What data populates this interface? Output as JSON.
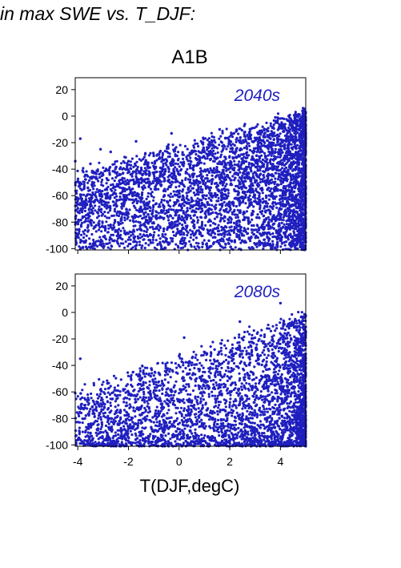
{
  "figure": {
    "header": "in max SWE vs. T_DJF:",
    "scenario": "A1B",
    "x_axis_title": "T(DJF,degC)",
    "point_color": "#1f1fbf"
  },
  "chart_data": [
    {
      "type": "scatter",
      "title": "2040s",
      "xlabel": "T(DJF,degC)",
      "ylabel": "",
      "xlim": [
        -4.1,
        5.0
      ],
      "ylim": [
        -101,
        29
      ],
      "x_ticks": [
        -4,
        -2,
        0,
        2,
        4
      ],
      "y_ticks": [
        20,
        0,
        -20,
        -40,
        -60,
        -80,
        -100
      ],
      "x_tick_labels_shown": false,
      "color": "#1f1fbf",
      "point_count_estimate": 4500,
      "points": [
        [
          -4.1,
          -34
        ],
        [
          -3.9,
          -17
        ],
        [
          -3.6,
          -54
        ],
        [
          -3.5,
          -36
        ],
        [
          -3.4,
          -51
        ],
        [
          -3.1,
          -25
        ],
        [
          -2.7,
          -27
        ],
        [
          -2.5,
          -39
        ],
        [
          -2.2,
          -56
        ],
        [
          -2.0,
          -34
        ],
        [
          -1.8,
          -48
        ],
        [
          -1.7,
          -19
        ],
        [
          -1.5,
          -63
        ],
        [
          -1.3,
          -44
        ],
        [
          -1.1,
          -77
        ],
        [
          -1.0,
          -30
        ],
        [
          -0.9,
          -66
        ],
        [
          -0.7,
          -52
        ],
        [
          -0.6,
          -85
        ],
        [
          -0.4,
          -40
        ],
        [
          -0.3,
          -13
        ],
        [
          -0.1,
          -71
        ],
        [
          0.1,
          -93
        ],
        [
          0.3,
          -58
        ],
        [
          0.5,
          -28
        ],
        [
          0.6,
          -82
        ],
        [
          0.8,
          -45
        ],
        [
          1.0,
          -67
        ],
        [
          1.1,
          -98
        ],
        [
          1.3,
          -22
        ],
        [
          1.5,
          -76
        ],
        [
          1.6,
          -10
        ],
        [
          1.8,
          -88
        ],
        [
          2.0,
          -37
        ],
        [
          2.2,
          -95
        ],
        [
          2.4,
          -64
        ],
        [
          2.6,
          -6
        ],
        [
          2.8,
          -80
        ],
        [
          3.0,
          -50
        ],
        [
          3.2,
          -97
        ],
        [
          3.4,
          -30
        ],
        [
          3.6,
          -72
        ],
        [
          3.8,
          -1
        ],
        [
          4.0,
          -90
        ],
        [
          4.2,
          -42
        ],
        [
          4.4,
          -98
        ],
        [
          4.6,
          -61
        ],
        [
          4.8,
          -15
        ],
        [
          4.9,
          -84
        ],
        [
          5.0,
          -55
        ]
      ]
    },
    {
      "type": "scatter",
      "title": "2080s",
      "xlabel": "T(DJF,degC)",
      "ylabel": "",
      "xlim": [
        -4.1,
        5.0
      ],
      "ylim": [
        -101,
        29
      ],
      "x_ticks": [
        -4,
        -2,
        0,
        2,
        4
      ],
      "y_ticks": [
        20,
        0,
        -20,
        -40,
        -60,
        -80,
        -100
      ],
      "x_tick_labels_shown": true,
      "color": "#1f1fbf",
      "point_count_estimate": 3500,
      "points": [
        [
          -4.1,
          -61
        ],
        [
          -3.9,
          -35
        ],
        [
          -3.6,
          -66
        ],
        [
          -3.4,
          -74
        ],
        [
          -3.0,
          -68
        ],
        [
          -2.7,
          -80
        ],
        [
          -2.5,
          -93
        ],
        [
          -2.2,
          -58
        ],
        [
          -2.0,
          -86
        ],
        [
          -1.8,
          -72
        ],
        [
          -1.6,
          -98
        ],
        [
          -1.4,
          -64
        ],
        [
          -1.2,
          -47
        ],
        [
          -1.0,
          -90
        ],
        [
          -0.8,
          -77
        ],
        [
          -0.6,
          -55
        ],
        [
          -0.4,
          -99
        ],
        [
          -0.2,
          -83
        ],
        [
          0.0,
          -33
        ],
        [
          0.2,
          -19
        ],
        [
          0.4,
          -95
        ],
        [
          0.6,
          -70
        ],
        [
          0.8,
          -44
        ],
        [
          1.0,
          -97
        ],
        [
          1.2,
          -86
        ],
        [
          1.4,
          -28
        ],
        [
          1.6,
          -62
        ],
        [
          1.8,
          -99
        ],
        [
          2.0,
          -50
        ],
        [
          2.2,
          -79
        ],
        [
          2.4,
          -7
        ],
        [
          2.6,
          -92
        ],
        [
          2.8,
          -38
        ],
        [
          3.0,
          -66
        ],
        [
          3.2,
          -97
        ],
        [
          3.4,
          -24
        ],
        [
          3.6,
          -84
        ],
        [
          3.8,
          -55
        ],
        [
          4.0,
          7
        ],
        [
          4.1,
          -93
        ],
        [
          4.3,
          -40
        ],
        [
          4.5,
          -75
        ],
        [
          4.6,
          -11
        ],
        [
          4.8,
          -99
        ],
        [
          4.9,
          -61
        ],
        [
          5.0,
          -15
        ]
      ]
    }
  ]
}
